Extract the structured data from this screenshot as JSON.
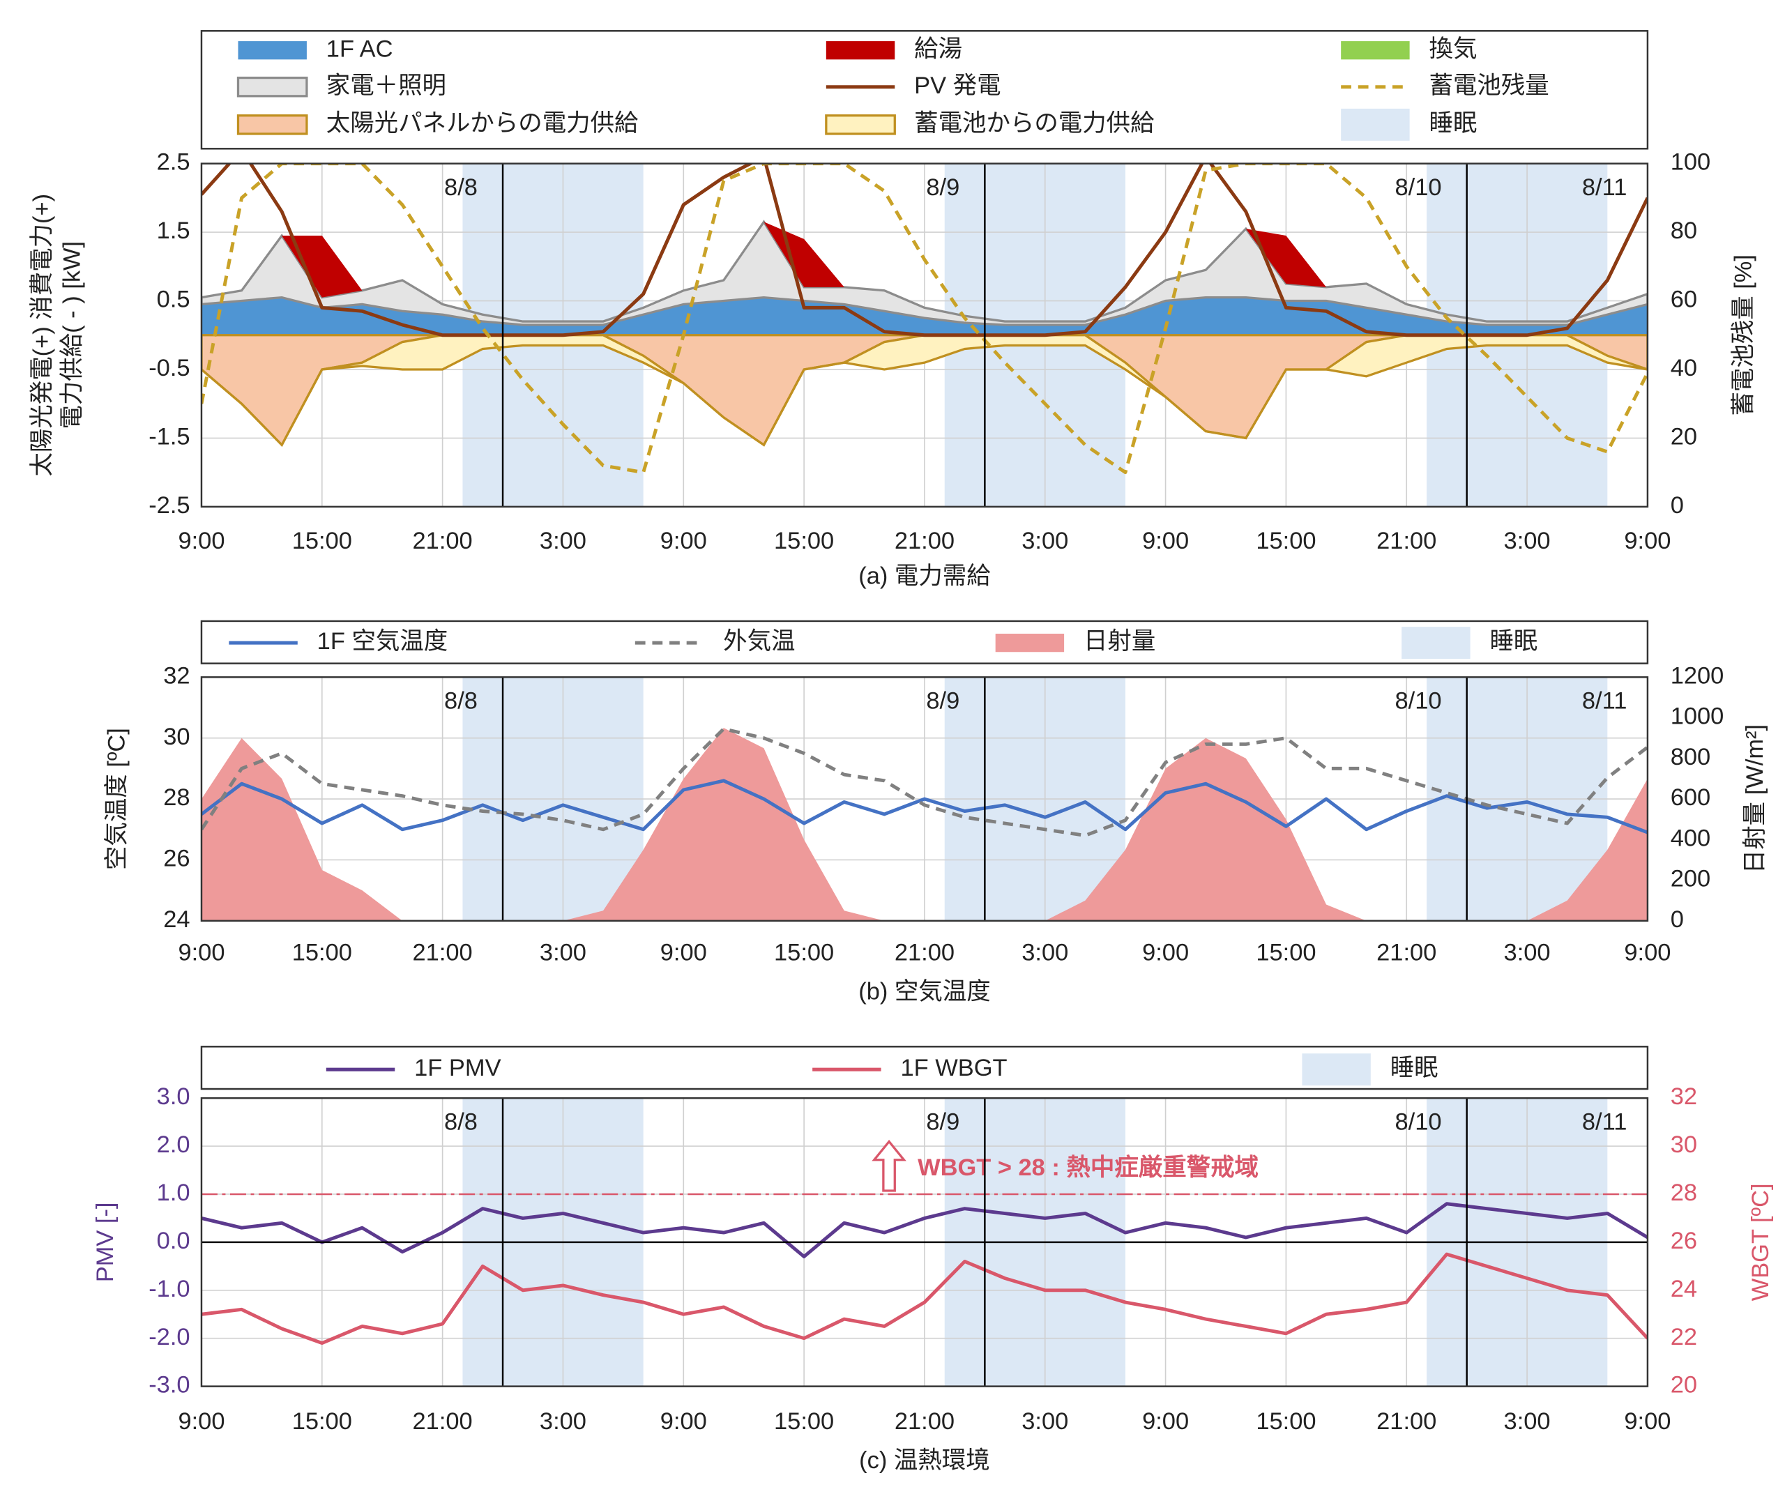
{
  "chart_data": [
    {
      "type": "line",
      "title": "(a) 電力需給",
      "ylabel": [
        "太陽光発電(+) 消費電力(+)",
        "電力供給( - ) [kW]"
      ],
      "y2label": "蓄電池残量 [%]",
      "x": [
        0,
        2,
        4,
        6,
        8,
        10,
        12,
        14,
        16,
        18,
        20,
        22,
        24,
        26,
        28,
        30,
        32,
        34,
        36,
        38,
        40,
        42,
        44,
        46,
        48,
        50,
        52,
        54,
        56,
        58,
        60,
        62,
        64,
        66,
        68,
        70,
        72
      ],
      "xlim": [
        0,
        72
      ],
      "xticks": [
        {
          "value": 0,
          "label": "9:00"
        },
        {
          "value": 6,
          "label": "15:00"
        },
        {
          "value": 12,
          "label": "21:00"
        },
        {
          "value": 18,
          "label": "3:00"
        },
        {
          "value": 24,
          "label": "9:00"
        },
        {
          "value": 30,
          "label": "15:00"
        },
        {
          "value": 36,
          "label": "21:00"
        },
        {
          "value": 42,
          "label": "3:00"
        },
        {
          "value": 48,
          "label": "9:00"
        },
        {
          "value": 54,
          "label": "15:00"
        },
        {
          "value": 60,
          "label": "21:00"
        },
        {
          "value": 66,
          "label": "3:00"
        },
        {
          "value": 72,
          "label": "9:00"
        }
      ],
      "ylim": [
        -2.5,
        2.5
      ],
      "yticks": [
        -2.5,
        -1.5,
        -0.5,
        0.5,
        1.5,
        2.5
      ],
      "y2lim": [
        0,
        100
      ],
      "y2ticks": [
        0,
        20,
        40,
        60,
        80,
        100
      ],
      "grid": true,
      "series": [
        {
          "name": "1F  AC",
          "style": "area",
          "stack": "positive",
          "color": "#4f95d3",
          "values": [
            0.45,
            0.5,
            0.55,
            0.4,
            0.45,
            0.35,
            0.3,
            0.2,
            0.15,
            0.15,
            0.15,
            0.3,
            0.45,
            0.5,
            0.55,
            0.5,
            0.45,
            0.35,
            0.25,
            0.18,
            0.15,
            0.15,
            0.15,
            0.3,
            0.5,
            0.55,
            0.55,
            0.5,
            0.5,
            0.4,
            0.3,
            0.2,
            0.15,
            0.15,
            0.15,
            0.3,
            0.45
          ]
        },
        {
          "name": "家電＋照明",
          "style": "area",
          "stack": "positive",
          "color": "#e4e4e4",
          "stroke": "#8c8c8c",
          "values": [
            0.1,
            0.15,
            0.9,
            0.15,
            0.2,
            0.45,
            0.15,
            0.1,
            0.05,
            0.05,
            0.05,
            0.1,
            0.2,
            0.3,
            1.1,
            0.2,
            0.25,
            0.3,
            0.15,
            0.1,
            0.05,
            0.05,
            0.05,
            0.1,
            0.3,
            0.4,
            1.0,
            0.25,
            0.2,
            0.35,
            0.15,
            0.1,
            0.05,
            0.05,
            0.05,
            0.1,
            0.15
          ]
        },
        {
          "name": "給湯",
          "style": "area",
          "stack": "positive",
          "color": "#c00000",
          "values": [
            0,
            0,
            0,
            0.9,
            0,
            0,
            0,
            0,
            0,
            0,
            0,
            0,
            0,
            0,
            0,
            0.7,
            0,
            0,
            0,
            0,
            0,
            0,
            0,
            0,
            0,
            0,
            0,
            0.7,
            0,
            0,
            0,
            0,
            0,
            0,
            0,
            0,
            0
          ]
        },
        {
          "name": "換気",
          "style": "area",
          "stack": "positive",
          "color": "#92d050",
          "values": [
            0,
            0,
            0,
            0,
            0,
            0,
            0,
            0,
            0,
            0,
            0,
            0,
            0,
            0,
            0,
            0,
            0,
            0,
            0,
            0,
            0,
            0,
            0,
            0,
            0,
            0,
            0,
            0,
            0,
            0,
            0,
            0,
            0,
            0,
            0,
            0,
            0
          ]
        },
        {
          "name": "PV 発電",
          "style": "line",
          "color": "#8b3a12",
          "values": [
            2.05,
            2.7,
            1.8,
            0.4,
            0.35,
            0.15,
            0,
            0,
            0,
            0,
            0.05,
            0.6,
            1.9,
            2.3,
            2.6,
            0.4,
            0.4,
            0.05,
            0,
            0,
            0,
            0,
            0.05,
            0.7,
            1.5,
            2.6,
            1.8,
            0.4,
            0.35,
            0.05,
            0,
            0,
            0,
            0,
            0.1,
            0.8,
            2.0
          ]
        },
        {
          "name": "蓄電池残量",
          "style": "dashed",
          "axis": "y2",
          "color": "#c9a227",
          "values": [
            30,
            90,
            100,
            100,
            100,
            88,
            70,
            52,
            37,
            24,
            12,
            10,
            50,
            95,
            100,
            100,
            100,
            92,
            72,
            55,
            42,
            30,
            18,
            10,
            52,
            98,
            100,
            100,
            100,
            90,
            70,
            55,
            44,
            32,
            20,
            16,
            39
          ]
        },
        {
          "name": "太陽光パネルからの電力供給",
          "style": "area",
          "stack": "negative",
          "color": "#f8c6a6",
          "stroke": "#c09020",
          "values": [
            -0.5,
            -1.0,
            -1.6,
            -0.5,
            -0.4,
            -0.1,
            0,
            0,
            0,
            0,
            0,
            -0.3,
            -0.7,
            -1.2,
            -1.6,
            -0.5,
            -0.4,
            -0.1,
            0,
            0,
            0,
            0,
            0,
            -0.4,
            -0.9,
            -1.4,
            -1.5,
            -0.5,
            -0.5,
            -0.1,
            0,
            0,
            0,
            0,
            0,
            -0.3,
            -0.5
          ]
        },
        {
          "name": "蓄電池からの電力供給",
          "style": "area",
          "stack": "negative",
          "color": "#fff2c0",
          "stroke": "#c09020",
          "values": [
            0,
            0,
            0,
            0,
            -0.05,
            -0.4,
            -0.5,
            -0.2,
            -0.15,
            -0.15,
            -0.15,
            -0.1,
            0,
            0,
            0,
            0,
            0,
            -0.4,
            -0.4,
            -0.2,
            -0.15,
            -0.15,
            -0.15,
            -0.1,
            0,
            0,
            0,
            0,
            0,
            -0.5,
            -0.4,
            -0.2,
            -0.15,
            -0.15,
            -0.15,
            -0.1,
            0
          ]
        }
      ],
      "sleep": {
        "name": "睡眠",
        "color": "#dce8f5",
        "ranges": [
          [
            13,
            22
          ],
          [
            37,
            46
          ],
          [
            61,
            70
          ]
        ]
      },
      "day_lines": [
        15,
        39,
        63
      ],
      "day_labels": [
        "8/8",
        "8/9",
        "8/10",
        "8/11"
      ]
    },
    {
      "type": "line",
      "title": "(b) 空気温度",
      "ylabel": "空気温度 [ºC]",
      "y2label": "日射量 [W/m²]",
      "x": [
        0,
        2,
        4,
        6,
        8,
        10,
        12,
        14,
        16,
        18,
        20,
        22,
        24,
        26,
        28,
        30,
        32,
        34,
        36,
        38,
        40,
        42,
        44,
        46,
        48,
        50,
        52,
        54,
        56,
        58,
        60,
        62,
        64,
        66,
        68,
        70,
        72
      ],
      "xlim": [
        0,
        72
      ],
      "xticks": [
        {
          "value": 0,
          "label": "9:00"
        },
        {
          "value": 6,
          "label": "15:00"
        },
        {
          "value": 12,
          "label": "21:00"
        },
        {
          "value": 18,
          "label": "3:00"
        },
        {
          "value": 24,
          "label": "9:00"
        },
        {
          "value": 30,
          "label": "15:00"
        },
        {
          "value": 36,
          "label": "21:00"
        },
        {
          "value": 42,
          "label": "3:00"
        },
        {
          "value": 48,
          "label": "9:00"
        },
        {
          "value": 54,
          "label": "15:00"
        },
        {
          "value": 60,
          "label": "21:00"
        },
        {
          "value": 66,
          "label": "3:00"
        },
        {
          "value": 72,
          "label": "9:00"
        }
      ],
      "ylim": [
        24,
        32
      ],
      "yticks": [
        24,
        26,
        28,
        30,
        32
      ],
      "y2lim": [
        0,
        1200
      ],
      "y2ticks": [
        0,
        200,
        400,
        600,
        800,
        1000,
        1200
      ],
      "grid": true,
      "series": [
        {
          "name": "1F 空気温度",
          "style": "line",
          "color": "#4472c4",
          "values": [
            27.5,
            28.5,
            28.0,
            27.2,
            27.8,
            27.0,
            27.3,
            27.8,
            27.3,
            27.8,
            27.4,
            27.0,
            28.3,
            28.6,
            28.0,
            27.2,
            27.9,
            27.5,
            28.0,
            27.6,
            27.8,
            27.4,
            27.9,
            27.0,
            28.2,
            28.5,
            27.9,
            27.1,
            28.0,
            27.0,
            27.6,
            28.1,
            27.7,
            27.9,
            27.5,
            27.4,
            26.9
          ]
        },
        {
          "name": "外気温",
          "style": "dashed",
          "color": "#808080",
          "values": [
            27.0,
            29.0,
            29.5,
            28.5,
            28.3,
            28.1,
            27.8,
            27.6,
            27.5,
            27.3,
            27.0,
            27.5,
            29.0,
            30.3,
            30.0,
            29.5,
            28.8,
            28.6,
            27.8,
            27.4,
            27.2,
            27.0,
            26.8,
            27.3,
            29.2,
            29.8,
            29.8,
            30.0,
            29.0,
            29.0,
            28.6,
            28.2,
            27.8,
            27.5,
            27.2,
            28.7,
            29.7
          ]
        },
        {
          "name": "日射量",
          "style": "area",
          "axis": "y2",
          "color": "#ee9a9a",
          "values": [
            600,
            900,
            700,
            250,
            150,
            0,
            0,
            0,
            0,
            0,
            50,
            350,
            700,
            950,
            850,
            400,
            50,
            0,
            0,
            0,
            0,
            0,
            100,
            350,
            750,
            900,
            800,
            500,
            80,
            0,
            0,
            0,
            0,
            0,
            100,
            350,
            700
          ]
        }
      ],
      "sleep": {
        "name": "睡眠",
        "color": "#dce8f5",
        "ranges": [
          [
            13,
            22
          ],
          [
            37,
            46
          ],
          [
            61,
            70
          ]
        ]
      },
      "day_lines": [
        15,
        39,
        63
      ],
      "day_labels": [
        "8/8",
        "8/9",
        "8/10",
        "8/11"
      ]
    },
    {
      "type": "line",
      "title": "(c) 温熱環境",
      "ylabel": "PMV [-]",
      "y2label": "WBGT [ºC]",
      "axis_colors": [
        "#5c3a8e",
        "#d9576a"
      ],
      "x": [
        0,
        2,
        4,
        6,
        8,
        10,
        12,
        14,
        16,
        18,
        20,
        22,
        24,
        26,
        28,
        30,
        32,
        34,
        36,
        38,
        40,
        42,
        44,
        46,
        48,
        50,
        52,
        54,
        56,
        58,
        60,
        62,
        64,
        66,
        68,
        70,
        72
      ],
      "xlim": [
        0,
        72
      ],
      "xticks": [
        {
          "value": 0,
          "label": "9:00"
        },
        {
          "value": 6,
          "label": "15:00"
        },
        {
          "value": 12,
          "label": "21:00"
        },
        {
          "value": 18,
          "label": "3:00"
        },
        {
          "value": 24,
          "label": "9:00"
        },
        {
          "value": 30,
          "label": "15:00"
        },
        {
          "value": 36,
          "label": "21:00"
        },
        {
          "value": 42,
          "label": "3:00"
        },
        {
          "value": 48,
          "label": "9:00"
        },
        {
          "value": 54,
          "label": "15:00"
        },
        {
          "value": 60,
          "label": "21:00"
        },
        {
          "value": 66,
          "label": "3:00"
        },
        {
          "value": 72,
          "label": "9:00"
        }
      ],
      "ylim": [
        -3,
        3
      ],
      "yticks": [
        {
          "value": -3,
          "label": "-3.0"
        },
        {
          "value": -2,
          "label": "-2.0"
        },
        {
          "value": -1,
          "label": "-1.0"
        },
        {
          "value": 0,
          "label": "0.0"
        },
        {
          "value": 1,
          "label": "1.0"
        },
        {
          "value": 2,
          "label": "2.0"
        },
        {
          "value": 3,
          "label": "3.0"
        }
      ],
      "y2lim": [
        20,
        32
      ],
      "y2ticks": [
        20,
        22,
        24,
        26,
        28,
        30,
        32
      ],
      "grid": true,
      "zero_line": true,
      "series": [
        {
          "name": "1F PMV",
          "style": "line",
          "color": "#5c3a8e",
          "values": [
            0.5,
            0.3,
            0.4,
            0,
            0.3,
            -0.2,
            0.2,
            0.7,
            0.5,
            0.6,
            0.4,
            0.2,
            0.3,
            0.2,
            0.4,
            -0.3,
            0.4,
            0.2,
            0.5,
            0.7,
            0.6,
            0.5,
            0.6,
            0.2,
            0.4,
            0.3,
            0.1,
            0.3,
            0.4,
            0.5,
            0.2,
            0.8,
            0.7,
            0.6,
            0.5,
            0.6,
            0.1
          ]
        },
        {
          "name": "1F WBGT",
          "style": "line",
          "axis": "y2",
          "color": "#d9576a",
          "values": [
            23.0,
            23.2,
            22.4,
            21.8,
            22.5,
            22.2,
            22.6,
            25.0,
            24.0,
            24.2,
            23.8,
            23.5,
            23.0,
            23.3,
            22.5,
            22.0,
            22.8,
            22.5,
            23.5,
            25.2,
            24.5,
            24.0,
            24.0,
            23.5,
            23.2,
            22.8,
            22.5,
            22.2,
            23.0,
            23.2,
            23.5,
            25.5,
            25.0,
            24.5,
            24.0,
            23.8,
            22.0
          ]
        }
      ],
      "threshold": {
        "value": 28,
        "axis": "y2",
        "label": "WBGT > 28 : 熱中症厳重警戒域",
        "color": "#d9576a"
      },
      "sleep": {
        "name": "睡眠",
        "color": "#dce8f5",
        "ranges": [
          [
            13,
            22
          ],
          [
            37,
            46
          ],
          [
            61,
            70
          ]
        ]
      },
      "day_lines": [
        15,
        39,
        63
      ],
      "day_labels": [
        "8/8",
        "8/9",
        "8/10",
        "8/11"
      ]
    }
  ]
}
